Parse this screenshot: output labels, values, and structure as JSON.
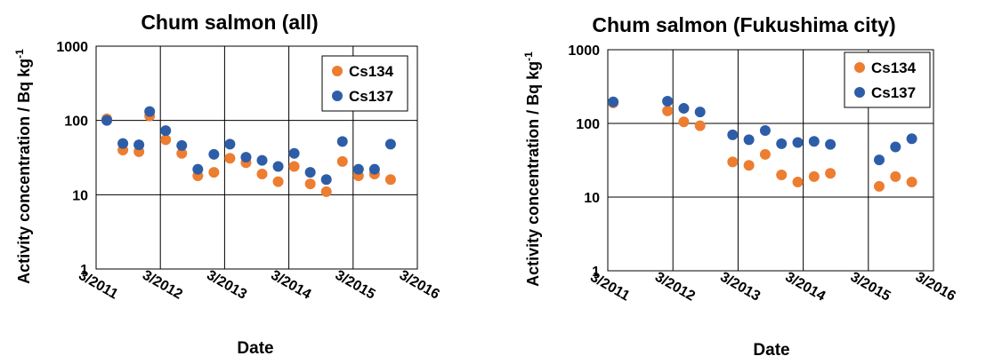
{
  "chart_data": [
    {
      "type": "scatter",
      "title": "Chum salmon (all)",
      "xlabel": "Date",
      "ylabel": "Activity concentration / Bq kg",
      "ylabel_superscript": "-1",
      "yscale": "log",
      "ylim": [
        1,
        1000
      ],
      "yticks": [
        "1",
        "10",
        "100",
        "1000"
      ],
      "xlim": [
        "2011-03",
        "2016-03"
      ],
      "xticks": [
        "3/2011",
        "3/2012",
        "3/2013",
        "3/2014",
        "3/2015",
        "3/2016"
      ],
      "grid": true,
      "legend": "top-right",
      "series": [
        {
          "name": "Cs134",
          "color": "#ED7D31",
          "points": [
            {
              "x": "2011-05",
              "y": 105
            },
            {
              "x": "2011-08",
              "y": 40
            },
            {
              "x": "2011-11",
              "y": 38
            },
            {
              "x": "2012-01",
              "y": 115
            },
            {
              "x": "2012-04",
              "y": 55
            },
            {
              "x": "2012-07",
              "y": 36
            },
            {
              "x": "2012-10",
              "y": 18
            },
            {
              "x": "2013-01",
              "y": 20
            },
            {
              "x": "2013-04",
              "y": 31
            },
            {
              "x": "2013-07",
              "y": 27
            },
            {
              "x": "2013-10",
              "y": 19
            },
            {
              "x": "2014-01",
              "y": 15
            },
            {
              "x": "2014-04",
              "y": 24
            },
            {
              "x": "2014-07",
              "y": 14
            },
            {
              "x": "2014-10",
              "y": 11
            },
            {
              "x": "2015-01",
              "y": 28
            },
            {
              "x": "2015-04",
              "y": 18
            },
            {
              "x": "2015-07",
              "y": 19
            },
            {
              "x": "2015-10",
              "y": 16
            }
          ]
        },
        {
          "name": "Cs137",
          "color": "#2E5DA8",
          "points": [
            {
              "x": "2011-05",
              "y": 100
            },
            {
              "x": "2011-08",
              "y": 49
            },
            {
              "x": "2011-11",
              "y": 47
            },
            {
              "x": "2012-01",
              "y": 132
            },
            {
              "x": "2012-04",
              "y": 73
            },
            {
              "x": "2012-07",
              "y": 46
            },
            {
              "x": "2012-10",
              "y": 22
            },
            {
              "x": "2013-01",
              "y": 35
            },
            {
              "x": "2013-04",
              "y": 48
            },
            {
              "x": "2013-07",
              "y": 32
            },
            {
              "x": "2013-10",
              "y": 29
            },
            {
              "x": "2014-01",
              "y": 24
            },
            {
              "x": "2014-04",
              "y": 36
            },
            {
              "x": "2014-07",
              "y": 20
            },
            {
              "x": "2014-10",
              "y": 16
            },
            {
              "x": "2015-01",
              "y": 52
            },
            {
              "x": "2015-04",
              "y": 22
            },
            {
              "x": "2015-07",
              "y": 22
            },
            {
              "x": "2015-10",
              "y": 48
            }
          ]
        }
      ]
    },
    {
      "type": "scatter",
      "title": "Chum salmon (Fukushima city)",
      "xlabel": "Date",
      "ylabel": "Activity concentration / Bq kg",
      "ylabel_superscript": "-1",
      "yscale": "log",
      "ylim": [
        1,
        1000
      ],
      "yticks": [
        "1",
        "10",
        "100",
        "1000"
      ],
      "xlim": [
        "2011-03",
        "2016-03"
      ],
      "xticks": [
        "3/2011",
        "3/2012",
        "3/2013",
        "3/2014",
        "3/2015",
        "3/2016"
      ],
      "grid": true,
      "legend": "top-right",
      "series": [
        {
          "name": "Cs134",
          "color": "#ED7D31",
          "points": [
            {
              "x": "2011-04",
              "y": 190
            },
            {
              "x": "2012-02",
              "y": 148
            },
            {
              "x": "2012-05",
              "y": 105
            },
            {
              "x": "2012-08",
              "y": 93
            },
            {
              "x": "2013-02",
              "y": 30
            },
            {
              "x": "2013-05",
              "y": 27
            },
            {
              "x": "2013-08",
              "y": 38
            },
            {
              "x": "2013-11",
              "y": 20
            },
            {
              "x": "2014-02",
              "y": 16
            },
            {
              "x": "2014-05",
              "y": 19
            },
            {
              "x": "2014-08",
              "y": 21
            },
            {
              "x": "2015-05",
              "y": 14
            },
            {
              "x": "2015-08",
              "y": 19
            },
            {
              "x": "2015-11",
              "y": 16
            }
          ]
        },
        {
          "name": "Cs137",
          "color": "#2E5DA8",
          "points": [
            {
              "x": "2011-04",
              "y": 196
            },
            {
              "x": "2012-02",
              "y": 200
            },
            {
              "x": "2012-05",
              "y": 160
            },
            {
              "x": "2012-08",
              "y": 143
            },
            {
              "x": "2013-02",
              "y": 70
            },
            {
              "x": "2013-05",
              "y": 60
            },
            {
              "x": "2013-08",
              "y": 80
            },
            {
              "x": "2013-11",
              "y": 53
            },
            {
              "x": "2014-02",
              "y": 55
            },
            {
              "x": "2014-05",
              "y": 57
            },
            {
              "x": "2014-08",
              "y": 52
            },
            {
              "x": "2015-05",
              "y": 32
            },
            {
              "x": "2015-08",
              "y": 48
            },
            {
              "x": "2015-11",
              "y": 62
            }
          ]
        }
      ]
    }
  ]
}
